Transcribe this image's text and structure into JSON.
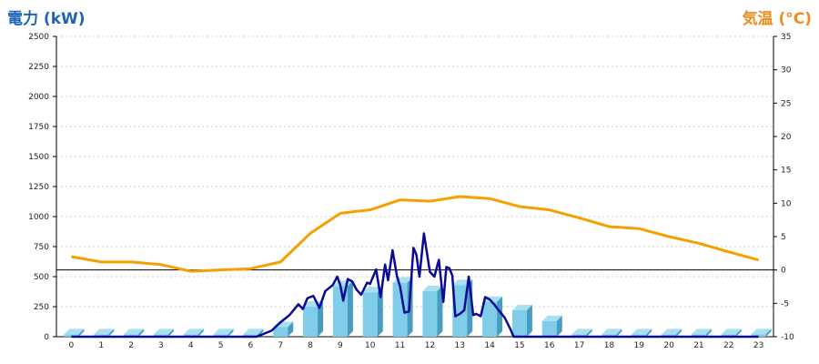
{
  "chart_data": {
    "type": "bar",
    "titles": {
      "left_axis_title": "電力 (kW)",
      "right_axis_title": "気温 (°C)"
    },
    "x": {
      "categories": [
        "0",
        "1",
        "2",
        "3",
        "4",
        "5",
        "6",
        "7",
        "8",
        "9",
        "10",
        "11",
        "12",
        "13",
        "14",
        "15",
        "16",
        "17",
        "18",
        "19",
        "20",
        "21",
        "22",
        "23"
      ]
    },
    "y_left": {
      "min": 0,
      "max": 2500,
      "ticks": [
        0,
        250,
        500,
        750,
        1000,
        1250,
        1500,
        1750,
        2000,
        2250,
        2500
      ]
    },
    "y_right": {
      "min": -10,
      "max": 35,
      "ticks": [
        -10,
        -5,
        0,
        5,
        10,
        15,
        20,
        25,
        30,
        35
      ]
    },
    "grid": true,
    "colors": {
      "bar": "#7fcde8",
      "bar_top": "#a8e0f2",
      "bar_side": "#4a9bc0",
      "temperature_line": "#f5a000",
      "power_line": "#0a0a96",
      "zero_line": "#000000"
    },
    "series": [
      {
        "kind": "bar",
        "axis": "left",
        "values": [
          20,
          20,
          20,
          20,
          20,
          20,
          20,
          80,
          250,
          420,
          370,
          450,
          380,
          430,
          290,
          220,
          130,
          20,
          20,
          20,
          20,
          20,
          20,
          20
        ]
      },
      {
        "kind": "line",
        "axis": "right",
        "values": [
          2.0,
          1.2,
          1.2,
          0.8,
          -0.2,
          0.0,
          0.2,
          1.2,
          5.5,
          8.5,
          9.0,
          10.5,
          10.3,
          11.0,
          10.7,
          9.5,
          9.0,
          7.8,
          6.5,
          6.2,
          5.0,
          4.0,
          2.7,
          1.5
        ]
      },
      {
        "kind": "line",
        "axis": "left",
        "x": [
          0,
          6.2,
          6.7,
          7.0,
          7.3,
          7.6,
          7.75,
          7.9,
          8.1,
          8.3,
          8.5,
          8.6,
          8.75,
          8.9,
          9.0,
          9.1,
          9.25,
          9.4,
          9.55,
          9.7,
          9.9,
          10.0,
          10.2,
          10.35,
          10.5,
          10.6,
          10.75,
          10.9,
          11.0,
          11.15,
          11.3,
          11.45,
          11.55,
          11.65,
          11.8,
          12.0,
          12.15,
          12.3,
          12.45,
          12.55,
          12.65,
          12.75,
          12.85,
          13.0,
          13.15,
          13.3,
          13.45,
          13.55,
          13.7,
          13.85,
          14.0,
          14.15,
          14.3,
          14.5,
          14.7,
          14.8,
          15.0,
          15.3,
          15.6,
          16.0,
          16.3,
          16.7,
          17.0,
          23.0
        ],
        "values": [
          0,
          0,
          50,
          120,
          180,
          270,
          230,
          320,
          340,
          240,
          380,
          400,
          430,
          500,
          430,
          300,
          480,
          460,
          390,
          350,
          450,
          440,
          560,
          330,
          600,
          470,
          720,
          500,
          420,
          200,
          210,
          740,
          680,
          500,
          860,
          540,
          500,
          640,
          290,
          580,
          570,
          510,
          170,
          190,
          220,
          500,
          180,
          190,
          170,
          330,
          310,
          270,
          220,
          160,
          60,
          0,
          0,
          0,
          0,
          0,
          0,
          0,
          0,
          0
        ]
      }
    ]
  }
}
